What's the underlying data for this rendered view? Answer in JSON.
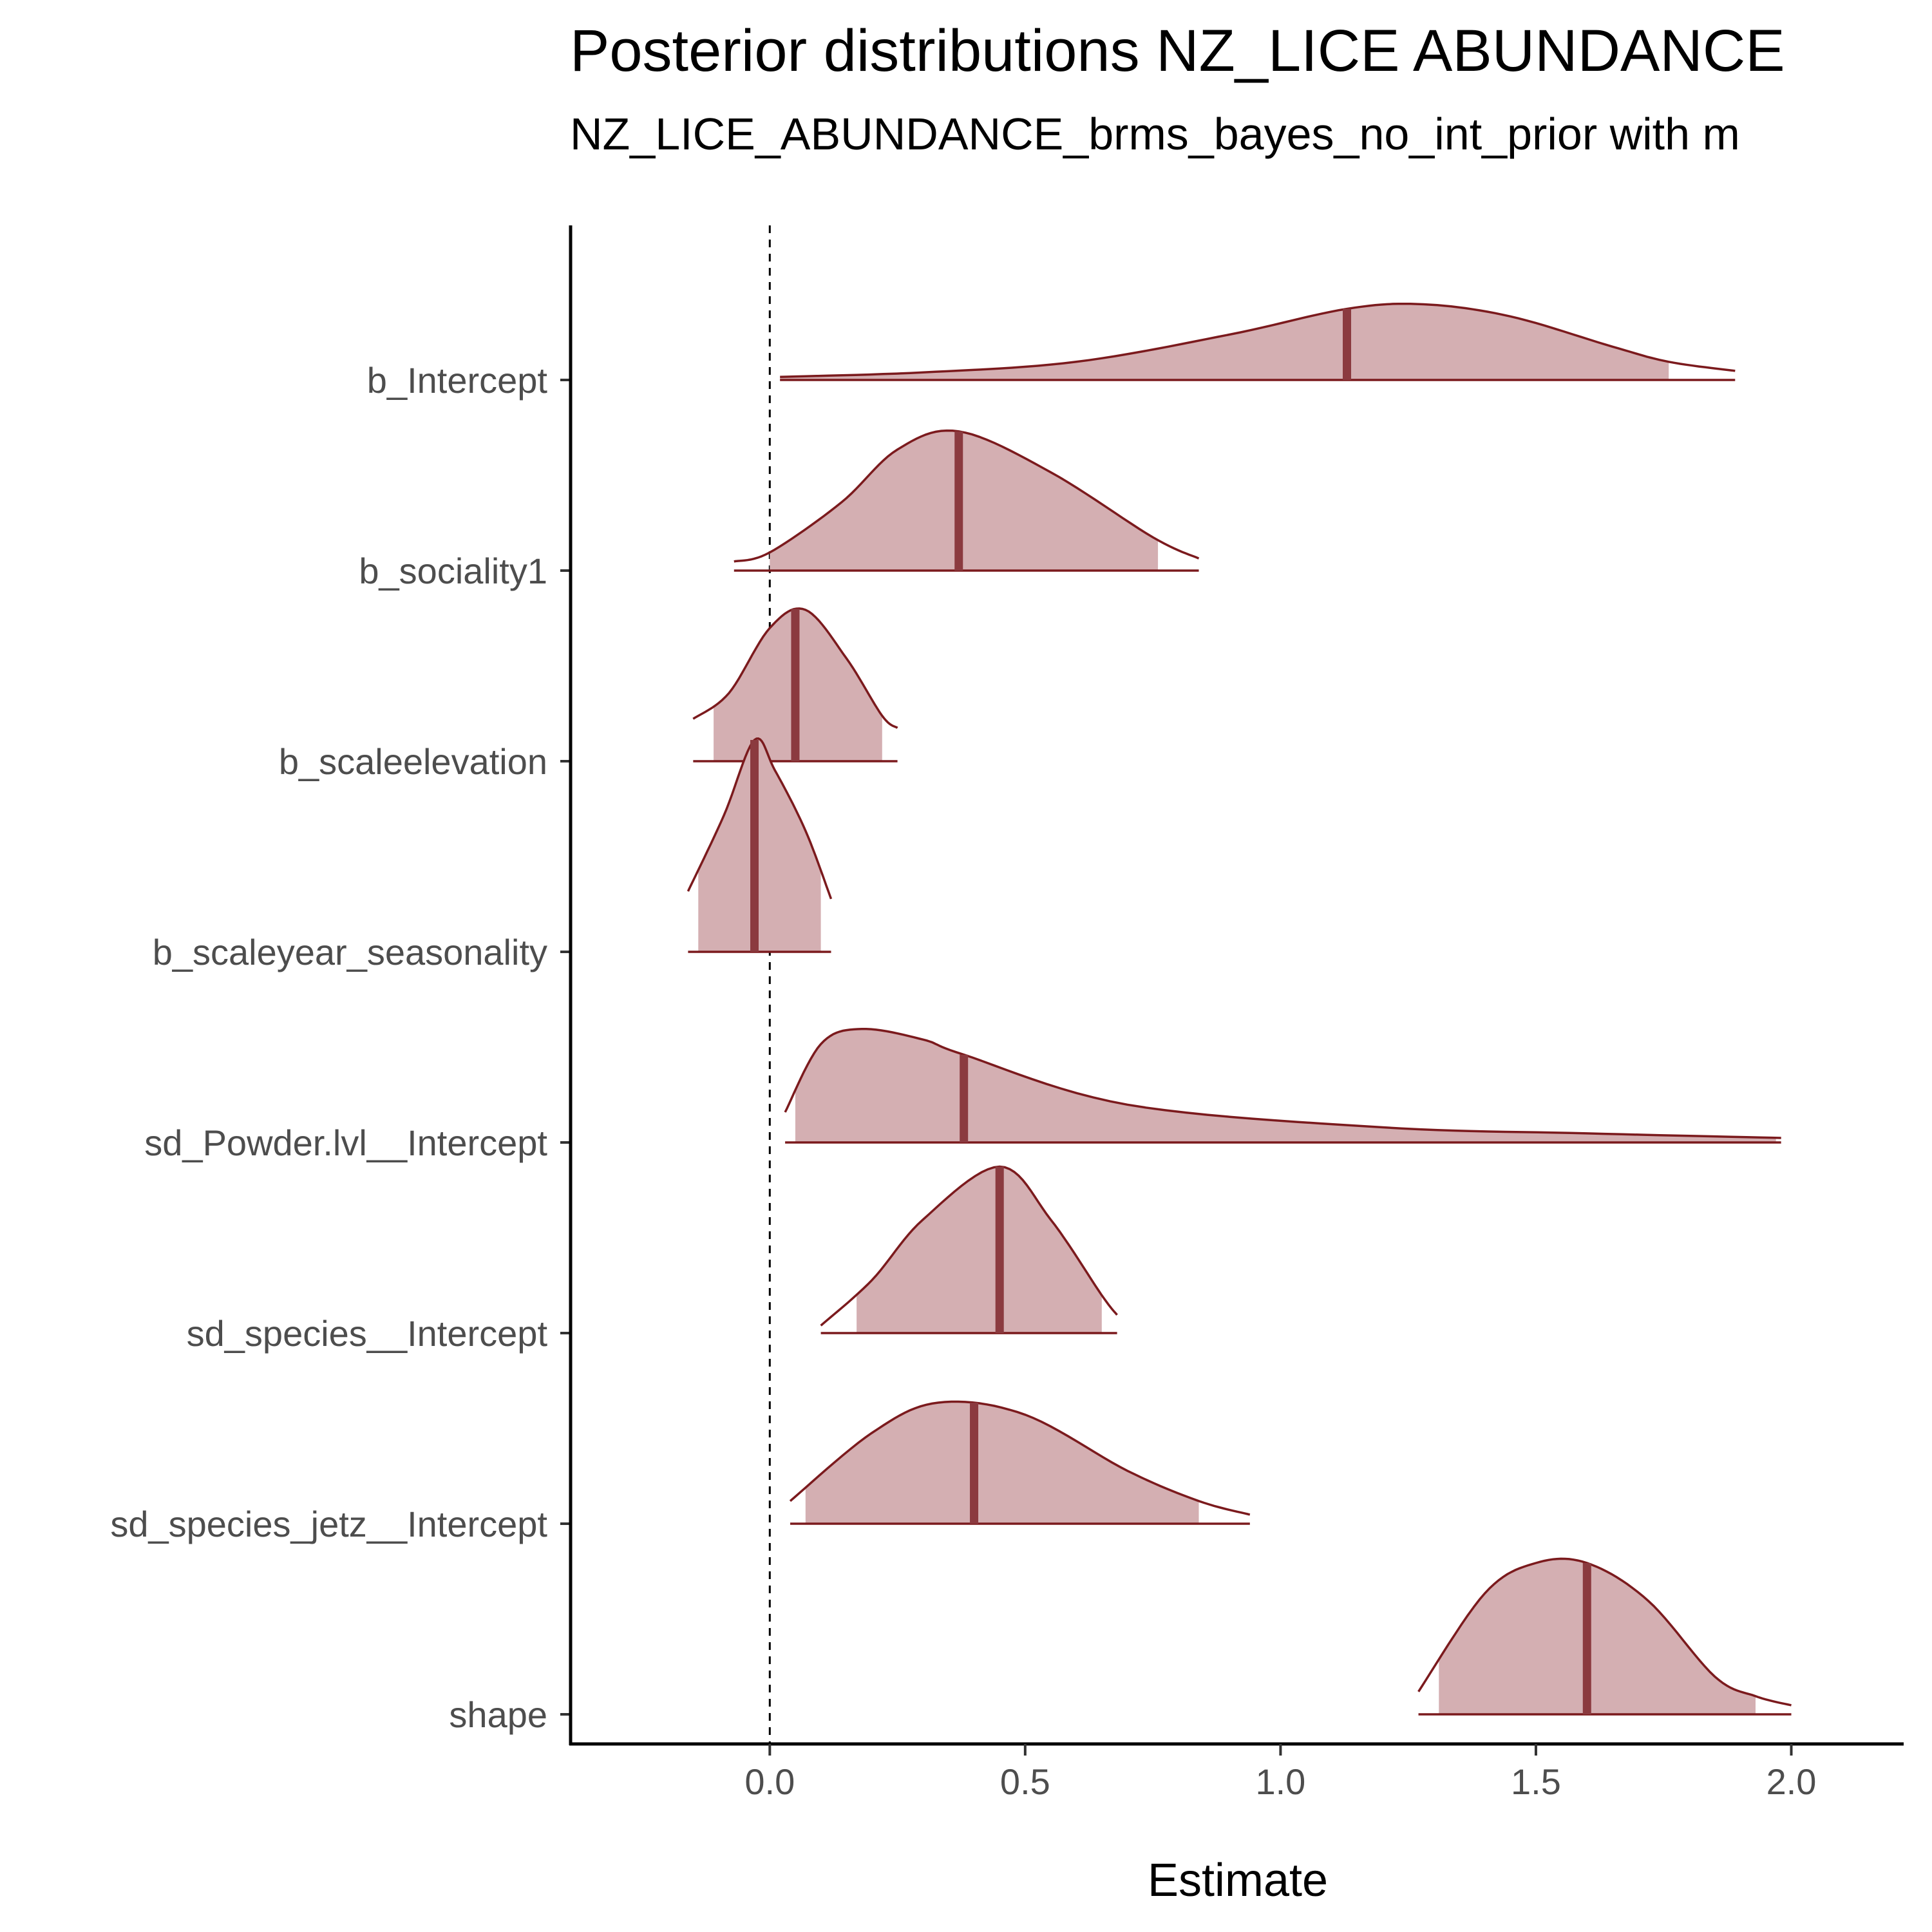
{
  "chart_data": {
    "type": "density",
    "title": "Posterior distributions NZ_LICE ABUNDANCE",
    "subtitle": "NZ_LICE_ABUNDANCE_brms_bayes_no_int_prior with m",
    "xlabel": "Estimate",
    "ylabel": "",
    "xlim": [
      -0.39,
      2.22
    ],
    "xticks": [
      "0.0",
      "0.5",
      "1.0",
      "1.5",
      "2.0"
    ],
    "xtick_values": [
      0.0,
      0.5,
      1.0,
      1.5,
      2.0
    ],
    "reference_line": {
      "x": 0,
      "style": "dashed"
    },
    "parameters": [
      {
        "label": "b_Intercept",
        "median": 1.13,
        "ci_low": 0.02,
        "ci_high": 1.76,
        "range": [
          0.02,
          1.89
        ],
        "density": [
          [
            0.02,
            0.02
          ],
          [
            0.3,
            0.05
          ],
          [
            0.6,
            0.12
          ],
          [
            0.9,
            0.3
          ],
          [
            1.13,
            0.47
          ],
          [
            1.28,
            0.5
          ],
          [
            1.45,
            0.42
          ],
          [
            1.65,
            0.22
          ],
          [
            1.76,
            0.12
          ],
          [
            1.89,
            0.06
          ]
        ]
      },
      {
        "label": "b_sociality1",
        "median": 0.37,
        "ci_low": 0.0,
        "ci_high": 0.76,
        "range": [
          -0.07,
          0.84
        ],
        "density": [
          [
            -0.07,
            0.06
          ],
          [
            0.0,
            0.12
          ],
          [
            0.14,
            0.45
          ],
          [
            0.25,
            0.8
          ],
          [
            0.37,
            0.92
          ],
          [
            0.55,
            0.65
          ],
          [
            0.75,
            0.22
          ],
          [
            0.84,
            0.08
          ]
        ]
      },
      {
        "label": "b_scaleelevation",
        "median": 0.05,
        "ci_low": -0.11,
        "ci_high": 0.22,
        "range": [
          -0.15,
          0.25
        ],
        "density": [
          [
            -0.15,
            0.28
          ],
          [
            -0.08,
            0.45
          ],
          [
            0.0,
            0.88
          ],
          [
            0.07,
            1.0
          ],
          [
            0.15,
            0.68
          ],
          [
            0.22,
            0.3
          ],
          [
            0.25,
            0.22
          ]
        ]
      },
      {
        "label": "b_scaleyear_seasonality",
        "median": -0.03,
        "ci_low": -0.14,
        "ci_high": 0.1,
        "range": [
          -0.16,
          0.12
        ],
        "density": [
          [
            -0.16,
            0.4
          ],
          [
            -0.09,
            0.9
          ],
          [
            -0.03,
            1.4
          ],
          [
            0.01,
            1.2
          ],
          [
            0.07,
            0.8
          ],
          [
            0.12,
            0.35
          ]
        ]
      },
      {
        "label": "sd_Powder.lvl__Intercept",
        "median": 0.38,
        "ci_low": 0.05,
        "ci_high": 1.97,
        "range": [
          0.03,
          1.98
        ],
        "density": [
          [
            0.03,
            0.2
          ],
          [
            0.1,
            0.65
          ],
          [
            0.18,
            0.75
          ],
          [
            0.3,
            0.68
          ],
          [
            0.38,
            0.58
          ],
          [
            0.7,
            0.25
          ],
          [
            1.2,
            0.1
          ],
          [
            1.6,
            0.06
          ],
          [
            1.98,
            0.03
          ]
        ]
      },
      {
        "label": "sd_species__Intercept",
        "median": 0.45,
        "ci_low": 0.17,
        "ci_high": 0.65,
        "range": [
          0.1,
          0.68
        ],
        "density": [
          [
            0.1,
            0.05
          ],
          [
            0.2,
            0.35
          ],
          [
            0.3,
            0.75
          ],
          [
            0.45,
            1.1
          ],
          [
            0.55,
            0.75
          ],
          [
            0.65,
            0.25
          ],
          [
            0.68,
            0.12
          ]
        ]
      },
      {
        "label": "sd_species_jetz__Intercept",
        "median": 0.4,
        "ci_low": 0.07,
        "ci_high": 0.84,
        "range": [
          0.04,
          0.94
        ],
        "density": [
          [
            0.04,
            0.15
          ],
          [
            0.2,
            0.6
          ],
          [
            0.33,
            0.8
          ],
          [
            0.5,
            0.72
          ],
          [
            0.7,
            0.35
          ],
          [
            0.84,
            0.15
          ],
          [
            0.94,
            0.06
          ]
        ]
      },
      {
        "label": "shape",
        "median": 1.6,
        "ci_low": 1.31,
        "ci_high": 1.93,
        "range": [
          1.27,
          2.0
        ],
        "density": [
          [
            1.27,
            0.15
          ],
          [
            1.4,
            0.8
          ],
          [
            1.5,
            1.0
          ],
          [
            1.6,
            1.0
          ],
          [
            1.72,
            0.75
          ],
          [
            1.85,
            0.25
          ],
          [
            1.93,
            0.12
          ],
          [
            2.0,
            0.06
          ]
        ]
      }
    ]
  },
  "colors": {
    "fill": "#d4afb2",
    "outline": "#7b1a1d",
    "median": "#8b3a3f",
    "axis": "#000000"
  }
}
